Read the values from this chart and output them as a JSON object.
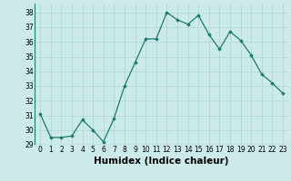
{
  "x": [
    0,
    1,
    2,
    3,
    4,
    5,
    6,
    7,
    8,
    9,
    10,
    11,
    12,
    13,
    14,
    15,
    16,
    17,
    18,
    19,
    20,
    21,
    22,
    23
  ],
  "y": [
    31.1,
    29.5,
    29.5,
    29.6,
    30.7,
    30.0,
    29.2,
    30.8,
    33.0,
    34.6,
    36.2,
    36.2,
    38.0,
    37.5,
    37.2,
    37.8,
    36.5,
    35.5,
    36.7,
    36.1,
    35.1,
    33.8,
    33.2,
    32.5
  ],
  "line_color": "#1a7a6e",
  "marker": "D",
  "marker_size": 1.8,
  "background_color": "#cdeaea",
  "grid_color": "#aed4d4",
  "xlabel": "Humidex (Indice chaleur)",
  "xlim": [
    -0.5,
    23.5
  ],
  "ylim": [
    29,
    38.6
  ],
  "yticks": [
    29,
    30,
    31,
    32,
    33,
    34,
    35,
    36,
    37,
    38
  ],
  "xticks": [
    0,
    1,
    2,
    3,
    4,
    5,
    6,
    7,
    8,
    9,
    10,
    11,
    12,
    13,
    14,
    15,
    16,
    17,
    18,
    19,
    20,
    21,
    22,
    23
  ],
  "tick_fontsize": 5.5,
  "xlabel_fontsize": 7.5,
  "line_width": 0.9
}
